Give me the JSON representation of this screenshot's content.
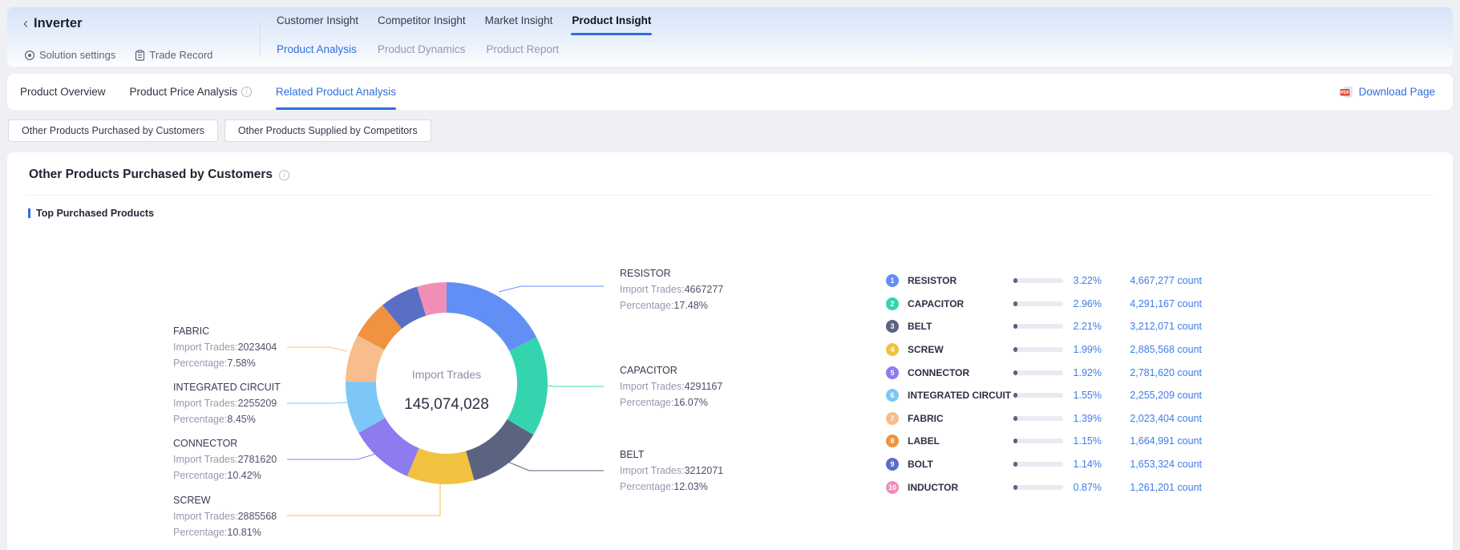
{
  "header": {
    "back_icon": "‹",
    "title": "Inverter",
    "quick_links": [
      {
        "label": "Solution settings",
        "icon": "settings-icon"
      },
      {
        "label": "Trade Record",
        "icon": "clipboard-icon"
      }
    ],
    "nav_tabs": [
      {
        "label": "Customer Insight",
        "active": false
      },
      {
        "label": "Competitor Insight",
        "active": false
      },
      {
        "label": "Market Insight",
        "active": false
      },
      {
        "label": "Product Insight",
        "active": true
      }
    ],
    "sub_tabs": [
      {
        "label": "Product Analysis",
        "active": true
      },
      {
        "label": "Product Dynamics",
        "active": false
      },
      {
        "label": "Product Report",
        "active": false
      }
    ]
  },
  "toolbar": {
    "tabs": [
      {
        "label": "Product Overview",
        "active": false,
        "has_info": false
      },
      {
        "label": "Product Price Analysis",
        "active": false,
        "has_info": true
      },
      {
        "label": "Related Product Analysis",
        "active": true,
        "has_info": false
      }
    ],
    "download_label": "Download Page",
    "pdf_badge": "PDF"
  },
  "filter_buttons": [
    {
      "label": "Other Products Purchased by Customers",
      "active": true
    },
    {
      "label": "Other Products Supplied by Competitors",
      "active": false
    }
  ],
  "section": {
    "title": "Other Products Purchased by Customers",
    "subtitle": "Top Purchased Products"
  },
  "chart_data": {
    "type": "pie",
    "title": "Top Purchased Products",
    "center_label": "Import Trades",
    "center_value": "145,074,028",
    "legend_position": "right-list",
    "callout_keys": {
      "trades": "Import Trades:",
      "pct": "Percentage:"
    },
    "series": [
      {
        "rank": "1",
        "name": "RESISTOR",
        "import_trades": 4667277,
        "trades_str": "4667277",
        "pct_of_top10": 17.48,
        "pct_top10_label": "17.48%",
        "pct_of_total_num": 3.22,
        "pct_of_total": "3.22%",
        "count_label": "4,667,277 count",
        "color": "#618ff6",
        "callout": true
      },
      {
        "rank": "2",
        "name": "CAPACITOR",
        "import_trades": 4291167,
        "trades_str": "4291167",
        "pct_of_top10": 16.07,
        "pct_top10_label": "16.07%",
        "pct_of_total_num": 2.96,
        "pct_of_total": "2.96%",
        "count_label": "4,291,167 count",
        "color": "#34d5ae",
        "callout": true
      },
      {
        "rank": "3",
        "name": "BELT",
        "import_trades": 3212071,
        "trades_str": "3212071",
        "pct_of_top10": 12.03,
        "pct_top10_label": "12.03%",
        "pct_of_total_num": 2.21,
        "pct_of_total": "2.21%",
        "count_label": "3,212,071 count",
        "color": "#5a6480",
        "callout": true
      },
      {
        "rank": "4",
        "name": "SCREW",
        "import_trades": 2885568,
        "trades_str": "2885568",
        "pct_of_top10": 10.81,
        "pct_top10_label": "10.81%",
        "pct_of_total_num": 1.99,
        "pct_of_total": "1.99%",
        "count_label": "2,885,568 count",
        "color": "#f0c240",
        "callout": true
      },
      {
        "rank": "5",
        "name": "CONNECTOR",
        "import_trades": 2781620,
        "trades_str": "2781620",
        "pct_of_top10": 10.42,
        "pct_top10_label": "10.42%",
        "pct_of_total_num": 1.92,
        "pct_of_total": "1.92%",
        "count_label": "2,781,620 count",
        "color": "#8d7bef",
        "callout": true
      },
      {
        "rank": "6",
        "name": "INTEGRATED CIRCUIT",
        "import_trades": 2255209,
        "trades_str": "2255209",
        "pct_of_top10": 8.45,
        "pct_top10_label": "8.45%",
        "pct_of_total_num": 1.55,
        "pct_of_total": "1.55%",
        "count_label": "2,255,209 count",
        "color": "#7cc7f6",
        "callout": true
      },
      {
        "rank": "7",
        "name": "FABRIC",
        "import_trades": 2023404,
        "trades_str": "2023404",
        "pct_of_top10": 7.58,
        "pct_top10_label": "7.58%",
        "pct_of_total_num": 1.39,
        "pct_of_total": "1.39%",
        "count_label": "2,023,404 count",
        "color": "#f7bd8c",
        "callout": true
      },
      {
        "rank": "8",
        "name": "LABEL",
        "import_trades": 1664991,
        "trades_str": "1664991",
        "pct_of_top10": 6.24,
        "pct_of_total_num": 1.15,
        "pct_of_total": "1.15%",
        "count_label": "1,664,991 count",
        "color": "#f0923f",
        "callout": false
      },
      {
        "rank": "9",
        "name": "BOLT",
        "import_trades": 1653324,
        "trades_str": "1653324",
        "pct_of_top10": 6.19,
        "pct_of_total_num": 1.14,
        "pct_of_total": "1.14%",
        "count_label": "1,653,324 count",
        "color": "#5a6ec6",
        "callout": false
      },
      {
        "rank": "10",
        "name": "INDUCTOR",
        "import_trades": 1261201,
        "trades_str": "1261201",
        "pct_of_top10": 4.72,
        "pct_of_total_num": 0.87,
        "pct_of_total": "0.87%",
        "count_label": "1,261,201 count",
        "color": "#ef8fb8",
        "callout": false
      }
    ]
  }
}
